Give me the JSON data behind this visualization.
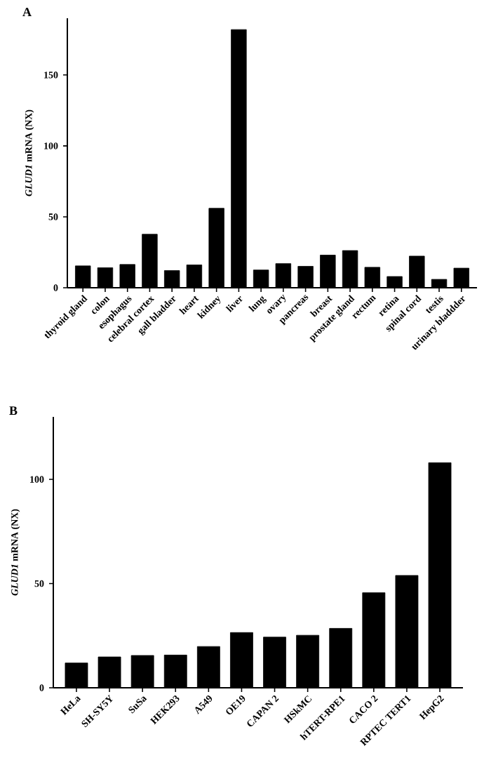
{
  "chart_data": [
    {
      "type": "bar",
      "title": "A",
      "ylabel": "*GLUD1* mRNA (NX)",
      "color": "#000000",
      "ylim": [
        0,
        190
      ],
      "yticks": [
        0,
        50,
        100,
        150
      ],
      "categories": [
        "thyroid gland",
        "colon",
        "esophagus",
        "celebral cortex",
        "gall bladder",
        "heart",
        "kidney",
        "liver",
        "lung",
        "ovary",
        "pancreas",
        "breast",
        "prostate gland",
        "rectum",
        "retina",
        "spinal cord",
        "testis",
        "urinary bladdder"
      ],
      "values": [
        15.4,
        14.1,
        16.4,
        37.7,
        12.1,
        16.1,
        56,
        182,
        12.5,
        17,
        15.1,
        23,
        26.2,
        14.4,
        7.9,
        22.3,
        5.9,
        13.8
      ]
    },
    {
      "type": "bar",
      "title": "B",
      "ylabel": "*GLUD1* mRNA (NX)",
      "color": "#000000",
      "ylim": [
        0,
        130
      ],
      "yticks": [
        0,
        50,
        100
      ],
      "categories": [
        "HeLa",
        "SH-SY5Y",
        "SuSa",
        "HEK293",
        "A549",
        "OE19",
        "CAPAN 2",
        "HSkMC",
        "hTERT-RPE1",
        "CACO 2",
        "RPTEC TERT1",
        "HepG2"
      ],
      "values": [
        11.9,
        14.8,
        15.5,
        15.7,
        19.8,
        26.5,
        24.3,
        25.2,
        28.5,
        45.6,
        53.9,
        108
      ]
    }
  ]
}
